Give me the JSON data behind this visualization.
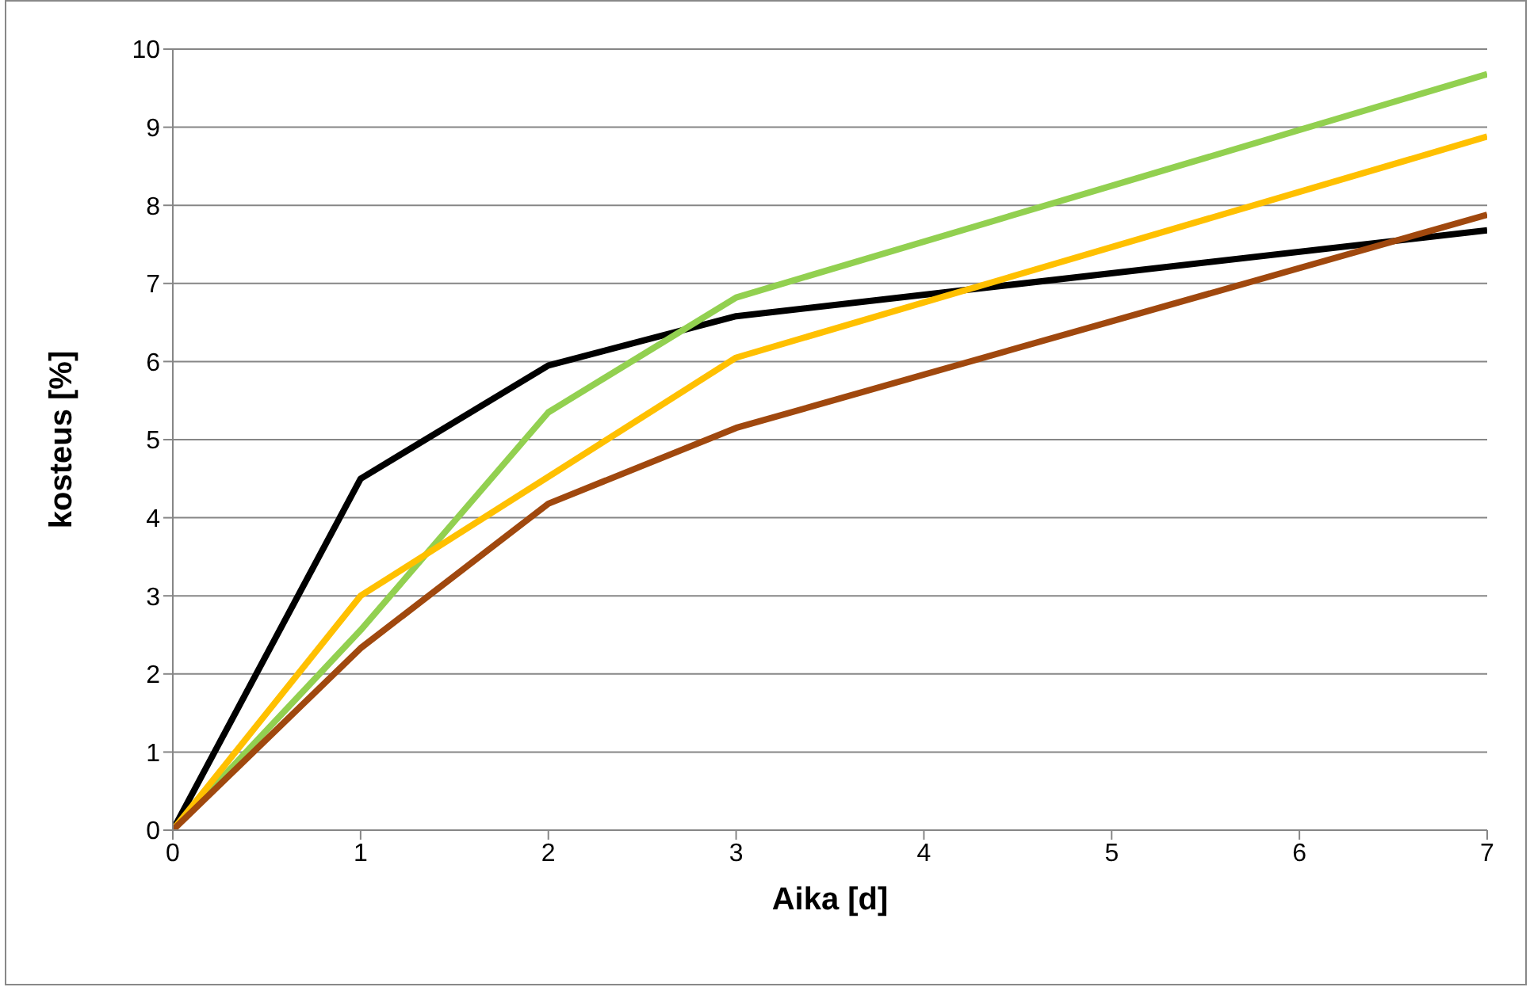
{
  "chart_data": {
    "type": "line",
    "xlabel": "Aika [d]",
    "ylabel": "kosteus [%]",
    "xlim": [
      0,
      7
    ],
    "xticks": [
      0,
      1,
      2,
      3,
      4,
      5,
      6,
      7
    ],
    "ylim": [
      0,
      10
    ],
    "yticks": [
      0,
      1,
      2,
      3,
      4,
      5,
      6,
      7,
      8,
      9,
      10
    ],
    "grid": "y",
    "marker": "none",
    "line_style": "solid",
    "series": [
      {
        "color": "#000000",
        "x": [
          0,
          1,
          2,
          3,
          7
        ],
        "values": [
          0,
          4.5,
          5.95,
          6.58,
          7.68
        ]
      },
      {
        "color": "#92d050",
        "x": [
          0,
          1,
          2,
          3,
          7
        ],
        "values": [
          0,
          2.56,
          5.35,
          6.82,
          9.68
        ]
      },
      {
        "color": "#ffc000",
        "x": [
          0,
          1,
          3,
          7
        ],
        "values": [
          0,
          3.0,
          6.05,
          8.88
        ]
      },
      {
        "color": "#a0480e",
        "x": [
          0,
          1,
          2,
          3,
          7
        ],
        "values": [
          0,
          2.33,
          4.18,
          5.15,
          7.88
        ]
      }
    ]
  }
}
